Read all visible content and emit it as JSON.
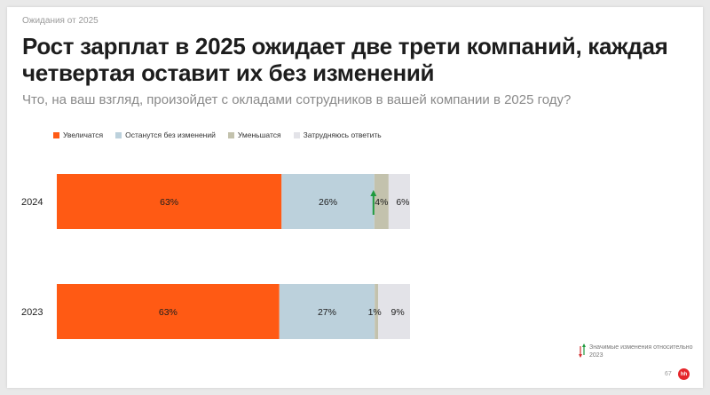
{
  "header": {
    "eyebrow": "Ожидания от 2025",
    "title": "Рост зарплат в 2025 ожидает две трети компаний, каждая четвертая оставит их без изменений",
    "subtitle": "Что, на ваш взгляд, произойдет с окладами сотрудников в вашей компании в 2025 году?"
  },
  "colors": {
    "increase": "#ff5a14",
    "no_change": "#bcd1dc",
    "decrease": "#c3c2ad",
    "unsure": "#e3e3e8",
    "arrow_up": "#1f9a3e",
    "arrow_down": "#d32f2f"
  },
  "chart_data": {
    "type": "bar",
    "orientation": "horizontal",
    "stacked": true,
    "categories": [
      "2024",
      "2023"
    ],
    "series": [
      {
        "name": "Увеличатся",
        "values": [
          63,
          63
        ],
        "labels": [
          "63%",
          "63%"
        ]
      },
      {
        "name": "Останутся без изменений",
        "values": [
          26,
          27
        ],
        "labels": [
          "26%",
          "27%"
        ]
      },
      {
        "name": "Уменьшатся",
        "values": [
          4,
          1
        ],
        "labels": [
          "4%",
          "1%"
        ]
      },
      {
        "name": "Затрудняюсь ответить",
        "values": [
          6,
          9
        ],
        "labels": [
          "6%",
          "9%"
        ]
      }
    ],
    "legend_position": "top-left",
    "grid": false,
    "significant_change_up": {
      "category": "2024",
      "series": "Уменьшатся"
    }
  },
  "footnote": {
    "text": "Значимые изменения относительно 2023"
  },
  "page": {
    "number": "67",
    "logo_text": "hh"
  }
}
